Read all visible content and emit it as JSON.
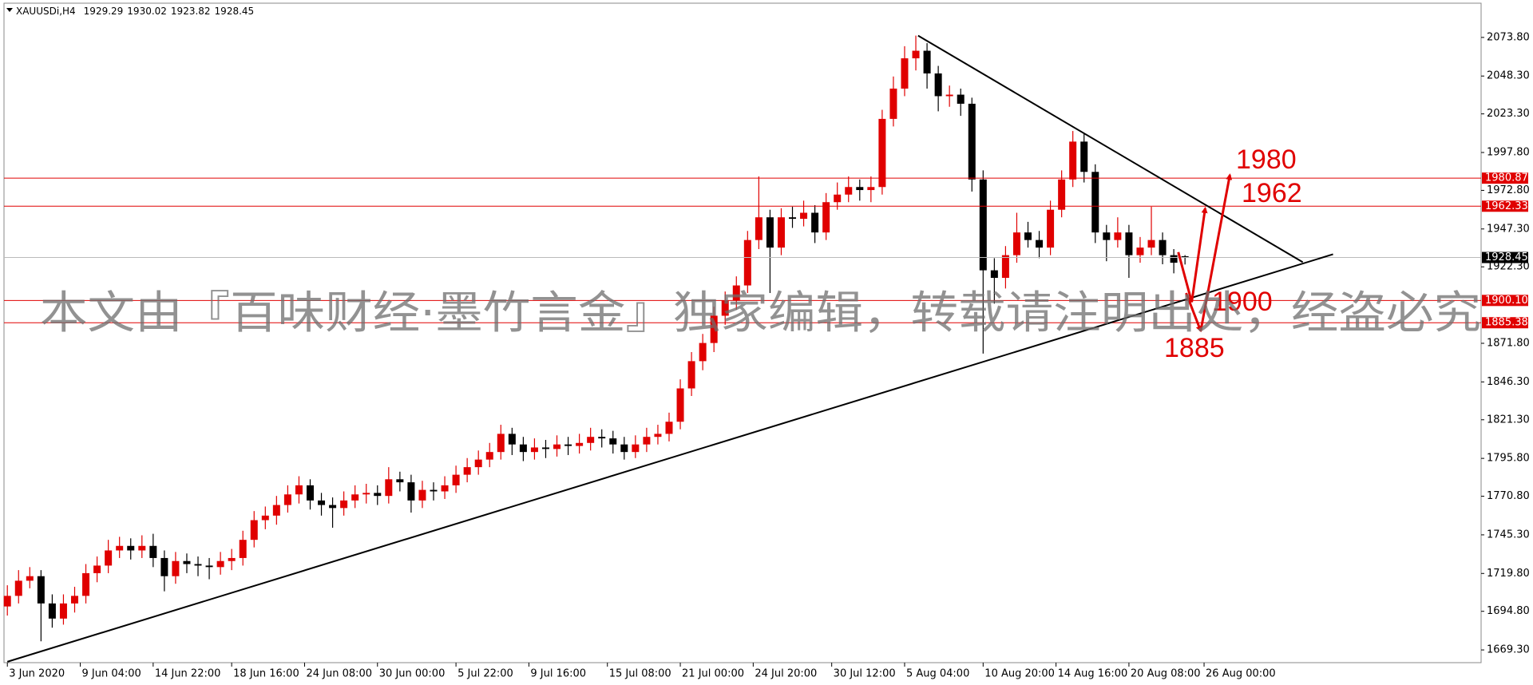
{
  "chart_data": {
    "type": "candlestick",
    "symbol": "XAUUSDi,H4",
    "watermark": "本文由『百味财经·墨竹言金』独家编辑，转载请注明出处，经盗必究",
    "up_color": "#e00000",
    "down_color": "#000000",
    "xlim": [
      -0.3,
      131.4
    ],
    "xticks": [
      {
        "value": 0,
        "label": "3 Jun 2020"
      },
      {
        "value": 6.5,
        "label": "9 Jun 04:00"
      },
      {
        "value": 13,
        "label": "14 Jun 22:00"
      },
      {
        "value": 20,
        "label": "18 Jun 16:00"
      },
      {
        "value": 26.5,
        "label": "24 Jun 08:00"
      },
      {
        "value": 33,
        "label": "30 Jun 00:00"
      },
      {
        "value": 40,
        "label": "5 Jul 22:00"
      },
      {
        "value": 46.5,
        "label": "9 Jul 16:00"
      },
      {
        "value": 53.5,
        "label": "15 Jul 08:00"
      },
      {
        "value": 60,
        "label": "21 Jul 00:00"
      },
      {
        "value": 66.5,
        "label": "24 Jul 20:00"
      },
      {
        "value": 73.5,
        "label": "30 Jul 12:00"
      },
      {
        "value": 80,
        "label": "5 Aug 04:00"
      },
      {
        "value": 87,
        "label": "10 Aug 20:00"
      },
      {
        "value": 93.5,
        "label": "14 Aug 16:00"
      },
      {
        "value": 100,
        "label": "20 Aug 08:00"
      },
      {
        "value": 106.7,
        "label": "26 Aug 00:00"
      }
    ],
    "ylim": [
      1660.9,
      2096.4
    ],
    "yticks": [
      {
        "value": 1669.3,
        "label": "1669.30"
      },
      {
        "value": 1694.8,
        "label": "1694.80"
      },
      {
        "value": 1719.8,
        "label": "1719.80"
      },
      {
        "value": 1745.3,
        "label": "1745.30"
      },
      {
        "value": 1770.8,
        "label": "1770.80"
      },
      {
        "value": 1795.8,
        "label": "1795.80"
      },
      {
        "value": 1821.3,
        "label": "1821.30"
      },
      {
        "value": 1846.3,
        "label": "1846.30"
      },
      {
        "value": 1871.8,
        "label": "1871.80"
      },
      {
        "value": 1922.3,
        "label": "1922.30"
      },
      {
        "value": 1947.3,
        "label": "1947.30"
      },
      {
        "value": 1972.8,
        "label": "1972.80"
      },
      {
        "value": 1997.8,
        "label": "1997.80"
      },
      {
        "value": 2023.3,
        "label": "2023.30"
      },
      {
        "value": 2048.3,
        "label": "2048.30"
      },
      {
        "value": 2073.8,
        "label": "2073.80"
      }
    ],
    "price_lines": [
      1980.87,
      1962.33,
      {
        "value": 1900.1,
        "label": "1900.10"
      },
      1885.38
    ],
    "price_line_color": "#e00000",
    "candles": [
      [
        1698,
        1712,
        1692,
        1705
      ],
      [
        1705,
        1722,
        1700,
        1715
      ],
      [
        1715,
        1724,
        1710,
        1718
      ],
      [
        1718,
        1722,
        1675,
        1700
      ],
      [
        1700,
        1706,
        1684,
        1690
      ],
      [
        1690,
        1706,
        1686,
        1700
      ],
      [
        1700,
        1711,
        1694,
        1705
      ],
      [
        1705,
        1726,
        1700,
        1720
      ],
      [
        1720,
        1731,
        1714,
        1725
      ],
      [
        1725,
        1742,
        1720,
        1735
      ],
      [
        1735,
        1744,
        1730,
        1738
      ],
      [
        1738,
        1743,
        1729,
        1735
      ],
      [
        1735,
        1745,
        1730,
        1738
      ],
      [
        1738,
        1746,
        1724,
        1730
      ],
      [
        1730,
        1735,
        1708,
        1718
      ],
      [
        1718,
        1734,
        1713,
        1728
      ],
      [
        1728,
        1733,
        1720,
        1726
      ],
      [
        1726,
        1731,
        1718,
        1725
      ],
      [
        1725,
        1730,
        1716,
        1724
      ],
      [
        1724,
        1734,
        1719,
        1728
      ],
      [
        1728,
        1736,
        1722,
        1730
      ],
      [
        1730,
        1748,
        1725,
        1742
      ],
      [
        1742,
        1761,
        1737,
        1755
      ],
      [
        1755,
        1764,
        1749,
        1758
      ],
      [
        1758,
        1771,
        1752,
        1765
      ],
      [
        1765,
        1778,
        1760,
        1772
      ],
      [
        1772,
        1784,
        1766,
        1778
      ],
      [
        1778,
        1782,
        1762,
        1768
      ],
      [
        1768,
        1773,
        1758,
        1765
      ],
      [
        1765,
        1770,
        1750,
        1763
      ],
      [
        1763,
        1774,
        1758,
        1768
      ],
      [
        1768,
        1778,
        1763,
        1772
      ],
      [
        1772,
        1779,
        1766,
        1773
      ],
      [
        1773,
        1778,
        1765,
        1771
      ],
      [
        1771,
        1790,
        1766,
        1782
      ],
      [
        1782,
        1787,
        1774,
        1780
      ],
      [
        1780,
        1785,
        1760,
        1768
      ],
      [
        1768,
        1781,
        1763,
        1775
      ],
      [
        1775,
        1780,
        1768,
        1774
      ],
      [
        1774,
        1784,
        1769,
        1778
      ],
      [
        1778,
        1791,
        1773,
        1785
      ],
      [
        1785,
        1796,
        1780,
        1790
      ],
      [
        1790,
        1801,
        1785,
        1795
      ],
      [
        1795,
        1806,
        1790,
        1800
      ],
      [
        1800,
        1818,
        1795,
        1812
      ],
      [
        1812,
        1816,
        1798,
        1805
      ],
      [
        1805,
        1810,
        1794,
        1800
      ],
      [
        1800,
        1809,
        1795,
        1803
      ],
      [
        1803,
        1808,
        1796,
        1802
      ],
      [
        1802,
        1811,
        1797,
        1805
      ],
      [
        1805,
        1810,
        1798,
        1804
      ],
      [
        1804,
        1812,
        1799,
        1806
      ],
      [
        1806,
        1816,
        1801,
        1810
      ],
      [
        1810,
        1815,
        1803,
        1809
      ],
      [
        1809,
        1814,
        1799,
        1805
      ],
      [
        1805,
        1810,
        1795,
        1800
      ],
      [
        1800,
        1811,
        1796,
        1805
      ],
      [
        1805,
        1816,
        1800,
        1810
      ],
      [
        1810,
        1818,
        1805,
        1812
      ],
      [
        1812,
        1826,
        1807,
        1820
      ],
      [
        1820,
        1848,
        1815,
        1842
      ],
      [
        1842,
        1866,
        1837,
        1860
      ],
      [
        1860,
        1878,
        1854,
        1872
      ],
      [
        1872,
        1896,
        1866,
        1890
      ],
      [
        1890,
        1906,
        1884,
        1900
      ],
      [
        1900,
        1916,
        1894,
        1910
      ],
      [
        1910,
        1946,
        1905,
        1940
      ],
      [
        1940,
        1982,
        1934,
        1955
      ],
      [
        1955,
        1960,
        1905,
        1935
      ],
      [
        1935,
        1961,
        1930,
        1955
      ],
      [
        1955,
        1962,
        1948,
        1954
      ],
      [
        1954,
        1966,
        1949,
        1958
      ],
      [
        1958,
        1963,
        1938,
        1945
      ],
      [
        1945,
        1971,
        1940,
        1965
      ],
      [
        1965,
        1978,
        1960,
        1970
      ],
      [
        1970,
        1982,
        1965,
        1975
      ],
      [
        1975,
        1980,
        1966,
        1973
      ],
      [
        1973,
        1982,
        1965,
        1975
      ],
      [
        1975,
        2026,
        1970,
        2020
      ],
      [
        2020,
        2048,
        2015,
        2040
      ],
      [
        2040,
        2068,
        2035,
        2060
      ],
      [
        2060,
        2075,
        2052,
        2065
      ],
      [
        2065,
        2070,
        2040,
        2050
      ],
      [
        2050,
        2055,
        2025,
        2035
      ],
      [
        2035,
        2042,
        2028,
        2036
      ],
      [
        2036,
        2040,
        2022,
        2030
      ],
      [
        2030,
        2034,
        1972,
        1980
      ],
      [
        1980,
        1986,
        1865,
        1920
      ],
      [
        1920,
        1928,
        1898,
        1915
      ],
      [
        1915,
        1936,
        1908,
        1930
      ],
      [
        1930,
        1958,
        1925,
        1945
      ],
      [
        1945,
        1952,
        1935,
        1940
      ],
      [
        1940,
        1946,
        1928,
        1935
      ],
      [
        1935,
        1966,
        1930,
        1960
      ],
      [
        1960,
        1986,
        1955,
        1980
      ],
      [
        1980,
        2012,
        1975,
        2005
      ],
      [
        2005,
        2010,
        1978,
        1985
      ],
      [
        1985,
        1990,
        1938,
        1945
      ],
      [
        1945,
        1950,
        1926,
        1940
      ],
      [
        1940,
        1955,
        1935,
        1945
      ],
      [
        1945,
        1950,
        1915,
        1930
      ],
      [
        1930,
        1942,
        1925,
        1935
      ],
      [
        1935,
        1962,
        1930,
        1940
      ],
      [
        1940,
        1945,
        1924,
        1930
      ],
      [
        1930,
        1934,
        1918,
        1925
      ],
      [
        1929.29,
        1930.02,
        1923.82,
        1928.45
      ]
    ],
    "trendlines": [
      [
        [
          81.2,
          2075
        ],
        [
          115.5,
          1925.4
        ]
      ],
      [
        [
          0,
          1661.5
        ],
        [
          118.2,
          1930.6
        ]
      ]
    ],
    "arrows": [
      [
        [
          104.4,
          1932
        ],
        [
          105.6,
          1899
        ],
        [
          106.8,
          1961
        ]
      ],
      [
        [
          105.1,
          1905
        ],
        [
          106.4,
          1880
        ]
      ],
      [
        [
          106.4,
          1880
        ],
        [
          109,
          1983
        ]
      ]
    ],
    "annotations": [
      "1980",
      "1962",
      "1900",
      "1885"
    ]
  }
}
